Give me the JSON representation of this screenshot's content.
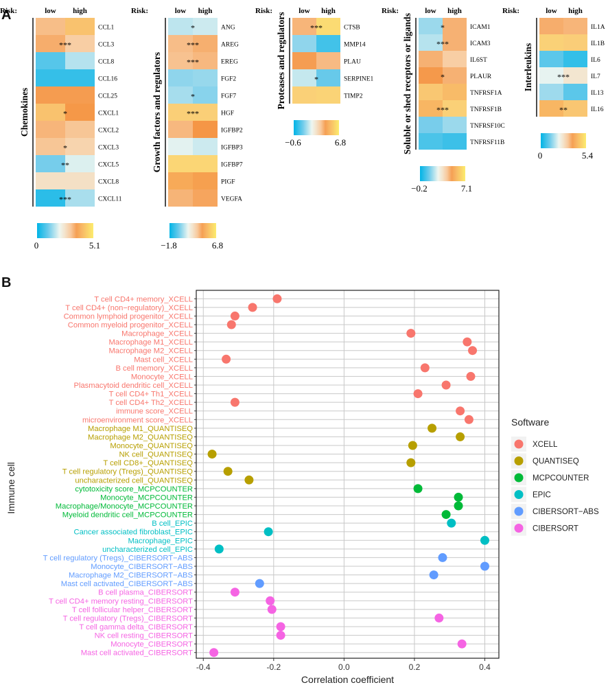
{
  "panel_a": {
    "label": "A",
    "risk_label": "Risk:",
    "low_label": "low",
    "high_label": "high"
  },
  "panel_b": {
    "label": "B"
  },
  "chart_data": [
    {
      "type": "heatmap",
      "title": "Chemokines",
      "columns": [
        "low",
        "high"
      ],
      "rows": [
        "CCL1",
        "CCL3",
        "CCL8",
        "CCL16",
        "CCL25",
        "CXCL1",
        "CXCL2",
        "CXCL3",
        "CXCL5",
        "CXCL8",
        "CXCL11"
      ],
      "values": [
        [
          3.2,
          4.2
        ],
        [
          3.4,
          3.0
        ],
        [
          0.8,
          1.6
        ],
        [
          0.5,
          0.5
        ],
        [
          3.6,
          3.6
        ],
        [
          4.2,
          3.7
        ],
        [
          3.3,
          3.1
        ],
        [
          3.1,
          2.9
        ],
        [
          1.1,
          1.9
        ],
        [
          2.6,
          2.6
        ],
        [
          0.4,
          1.5
        ]
      ],
      "significance": [
        "",
        "***",
        "",
        "",
        "",
        "*",
        "",
        "*",
        "**",
        "",
        "***"
      ],
      "scale": {
        "min": 0,
        "max": 5.1,
        "min_label": "0",
        "max_label": "5.1"
      }
    },
    {
      "type": "heatmap",
      "title": "Growth factors and regulators",
      "columns": [
        "low",
        "high"
      ],
      "rows": [
        "ANG",
        "AREG",
        "EREG",
        "FGF2",
        "FGF7",
        "HGF",
        "IGFBP2",
        "IGFBP3",
        "IGFBP7",
        "PIGF",
        "VEGFA"
      ],
      "values": [
        [
          1.0,
          1.2
        ],
        [
          3.6,
          3.9
        ],
        [
          3.5,
          3.7
        ],
        [
          0.4,
          0.5
        ],
        [
          0.7,
          0.3
        ],
        [
          5.6,
          5.6
        ],
        [
          3.7,
          4.4
        ],
        [
          1.5,
          1.2
        ],
        [
          5.9,
          5.9
        ],
        [
          4.8,
          4.6
        ],
        [
          3.8,
          4.1
        ]
      ],
      "significance": [
        "*",
        "***",
        "***",
        "",
        "*",
        "***",
        "",
        "",
        "",
        "",
        ""
      ],
      "scale": {
        "min": -1.8,
        "max": 6.8,
        "min_label": "−1.8",
        "max_label": "6.8"
      }
    },
    {
      "type": "heatmap",
      "title": "Proteases and regulators",
      "columns": [
        "low",
        "high"
      ],
      "rows": [
        "CTSB",
        "MMP14",
        "PLAU",
        "SERPINE1",
        "TIMP2"
      ],
      "values": [
        [
          4.2,
          6.2
        ],
        [
          1.3,
          0.3
        ],
        [
          4.6,
          4.1
        ],
        [
          1.9,
          0.8
        ],
        [
          5.8,
          5.9
        ]
      ],
      "significance": [
        "***",
        "",
        "",
        "*",
        ""
      ],
      "scale": {
        "min": -0.6,
        "max": 6.8,
        "min_label": "−0.6",
        "max_label": "6.8"
      }
    },
    {
      "type": "heatmap",
      "title": "Soluble or shed receptors or ligands",
      "columns": [
        "low",
        "high"
      ],
      "rows": [
        "ICAM1",
        "ICAM3",
        "IL6ST",
        "PLAUR",
        "TNFRSF1A",
        "TNFRSF1B",
        "TNFRSF10C",
        "TNFRSF11B"
      ],
      "values": [
        [
          1.8,
          4.6
        ],
        [
          2.1,
          4.6
        ],
        [
          4.6,
          4.1
        ],
        [
          5.0,
          4.6
        ],
        [
          5.9,
          5.7
        ],
        [
          5.6,
          6.1
        ],
        [
          1.4,
          1.8
        ],
        [
          0.8,
          0.6
        ]
      ],
      "significance": [
        "*",
        "***",
        "",
        "*",
        "",
        "***",
        "",
        ""
      ],
      "scale": {
        "min": -0.2,
        "max": 7.1,
        "min_label": "−0.2",
        "max_label": "7.1"
      }
    },
    {
      "type": "heatmap",
      "title": "Interleukins",
      "columns": [
        "low",
        "high"
      ],
      "rows": [
        "IL1A",
        "IL1B",
        "IL6",
        "IL7",
        "IL13",
        "IL16"
      ],
      "values": [
        [
          3.6,
          3.5
        ],
        [
          4.7,
          4.6
        ],
        [
          0.9,
          0.5
        ],
        [
          2.1,
          2.6
        ],
        [
          1.5,
          0.9
        ],
        [
          4.3,
          4.5
        ]
      ],
      "significance": [
        "",
        "",
        "",
        "***",
        "",
        "**"
      ],
      "scale": {
        "min": 0,
        "max": 5.4,
        "min_label": "0",
        "max_label": "5.4"
      }
    },
    {
      "type": "scatter",
      "title": "",
      "xlabel": "Correlation coefficient",
      "ylabel": "Immune cell",
      "xlim": [
        -0.42,
        0.44
      ],
      "xticks": [
        "-0.4",
        "-0.2",
        "0.0",
        "0.2",
        "0.4"
      ],
      "xtick_values": [
        -0.4,
        -0.2,
        0.0,
        0.2,
        0.4
      ],
      "legend": {
        "title": "Software",
        "position": "right",
        "entries": [
          {
            "name": "XCELL",
            "color": "#f8766d"
          },
          {
            "name": "QUANTISEQ",
            "color": "#b79f00"
          },
          {
            "name": "MCPCOUNTER",
            "color": "#00ba38"
          },
          {
            "name": "EPIC",
            "color": "#00bfc4"
          },
          {
            "name": "CIBERSORT−ABS",
            "color": "#619cff"
          },
          {
            "name": "CIBERSORT",
            "color": "#f564e3"
          }
        ]
      },
      "points": [
        {
          "label": "T cell CD4+ memory_XCELL",
          "value": -0.19,
          "software": "XCELL"
        },
        {
          "label": "T cell CD4+ (non−regulatory)_XCELL",
          "value": -0.26,
          "software": "XCELL"
        },
        {
          "label": "Common lymphoid progenitor_XCELL",
          "value": -0.31,
          "software": "XCELL"
        },
        {
          "label": "Common myeloid progenitor_XCELL",
          "value": -0.32,
          "software": "XCELL"
        },
        {
          "label": "Macrophage_XCELL",
          "value": 0.19,
          "software": "XCELL"
        },
        {
          "label": "Macrophage M1_XCELL",
          "value": 0.35,
          "software": "XCELL"
        },
        {
          "label": "Macrophage M2_XCELL",
          "value": 0.365,
          "software": "XCELL"
        },
        {
          "label": "Mast cell_XCELL",
          "value": -0.335,
          "software": "XCELL"
        },
        {
          "label": "B cell memory_XCELL",
          "value": 0.23,
          "software": "XCELL"
        },
        {
          "label": "Monocyte_XCELL",
          "value": 0.36,
          "software": "XCELL"
        },
        {
          "label": "Plasmacytoid dendritic cell_XCELL",
          "value": 0.29,
          "software": "XCELL"
        },
        {
          "label": "T cell CD4+ Th1_XCELL",
          "value": 0.21,
          "software": "XCELL"
        },
        {
          "label": "T cell CD4+ Th2_XCELL",
          "value": -0.31,
          "software": "XCELL"
        },
        {
          "label": "immune score_XCELL",
          "value": 0.33,
          "software": "XCELL"
        },
        {
          "label": "microenvironment score_XCELL",
          "value": 0.355,
          "software": "XCELL"
        },
        {
          "label": "Macrophage M1_QUANTISEQ",
          "value": 0.25,
          "software": "QUANTISEQ"
        },
        {
          "label": "Macrophage M2_QUANTISEQ",
          "value": 0.33,
          "software": "QUANTISEQ"
        },
        {
          "label": "Monocyte_QUANTISEQ",
          "value": 0.195,
          "software": "QUANTISEQ"
        },
        {
          "label": "NK cell_QUANTISEQ",
          "value": -0.375,
          "software": "QUANTISEQ"
        },
        {
          "label": "T cell CD8+_QUANTISEQ",
          "value": 0.19,
          "software": "QUANTISEQ"
        },
        {
          "label": "T cell regulatory (Tregs)_QUANTISEQ",
          "value": -0.33,
          "software": "QUANTISEQ"
        },
        {
          "label": "uncharacterized cell_QUANTISEQ",
          "value": -0.27,
          "software": "QUANTISEQ"
        },
        {
          "label": "cytotoxicity score_MCPCOUNTER",
          "value": 0.21,
          "software": "MCPCOUNTER"
        },
        {
          "label": "Monocyte_MCPCOUNTER",
          "value": 0.325,
          "software": "MCPCOUNTER"
        },
        {
          "label": "Macrophage/Monocyte_MCPCOUNTER",
          "value": 0.325,
          "software": "MCPCOUNTER"
        },
        {
          "label": "Myeloid dendritic cell_MCPCOUNTER",
          "value": 0.29,
          "software": "MCPCOUNTER"
        },
        {
          "label": "B cell_EPIC",
          "value": 0.305,
          "software": "EPIC"
        },
        {
          "label": "Cancer associated fibroblast_EPIC",
          "value": -0.215,
          "software": "EPIC"
        },
        {
          "label": "Macrophage_EPIC",
          "value": 0.4,
          "software": "EPIC"
        },
        {
          "label": "uncharacterized cell_EPIC",
          "value": -0.355,
          "software": "EPIC"
        },
        {
          "label": "T cell regulatory (Tregs)_CIBERSORT−ABS",
          "value": 0.28,
          "software": "CIBERSORT−ABS"
        },
        {
          "label": "Monocyte_CIBERSORT−ABS",
          "value": 0.4,
          "software": "CIBERSORT−ABS"
        },
        {
          "label": "Macrophage M2_CIBERSORT−ABS",
          "value": 0.255,
          "software": "CIBERSORT−ABS"
        },
        {
          "label": "Mast cell activated_CIBERSORT−ABS",
          "value": -0.24,
          "software": "CIBERSORT−ABS"
        },
        {
          "label": "B cell plasma_CIBERSORT",
          "value": -0.31,
          "software": "CIBERSORT"
        },
        {
          "label": "T cell CD4+ memory resting_CIBERSORT",
          "value": -0.21,
          "software": "CIBERSORT"
        },
        {
          "label": "T cell follicular helper_CIBERSORT",
          "value": -0.205,
          "software": "CIBERSORT"
        },
        {
          "label": "T cell regulatory (Tregs)_CIBERSORT",
          "value": 0.27,
          "software": "CIBERSORT"
        },
        {
          "label": "T cell gamma delta_CIBERSORT",
          "value": -0.18,
          "software": "CIBERSORT"
        },
        {
          "label": "NK cell resting_CIBERSORT",
          "value": -0.18,
          "software": "CIBERSORT"
        },
        {
          "label": "Monocyte_CIBERSORT",
          "value": 0.335,
          "software": "CIBERSORT"
        },
        {
          "label": "Mast cell activated_CIBERSORT",
          "value": -0.37,
          "software": "CIBERSORT"
        }
      ]
    }
  ]
}
